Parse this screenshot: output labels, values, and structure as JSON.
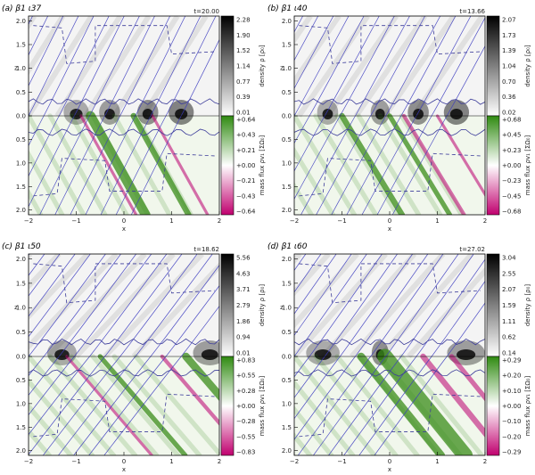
{
  "figure": {
    "panels": [
      {
        "label": "(a) β1 ι37",
        "time": "t=20.00",
        "density_ticks": [
          "2.28",
          "1.90",
          "1.52",
          "1.14",
          "0.77",
          "0.39",
          "0.01"
        ],
        "massflux_ticks": [
          "+0.64",
          "+0.43",
          "+0.21",
          "+0.00",
          "−0.21",
          "−0.43",
          "−0.64"
        ],
        "density_max": 2.28,
        "flux_max": 0.64
      },
      {
        "label": "(b) β1 ι40",
        "time": "t=13.66",
        "density_ticks": [
          "2.07",
          "1.73",
          "1.39",
          "1.04",
          "0.70",
          "0.36",
          "0.02"
        ],
        "massflux_ticks": [
          "+0.68",
          "+0.45",
          "+0.23",
          "+0.00",
          "−0.23",
          "−0.45",
          "−0.68"
        ],
        "density_max": 2.07,
        "flux_max": 0.68
      },
      {
        "label": "(c) β1 ι50",
        "time": "t=18.62",
        "density_ticks": [
          "5.56",
          "4.63",
          "3.71",
          "2.79",
          "1.86",
          "0.94",
          "0.01"
        ],
        "massflux_ticks": [
          "+0.83",
          "+0.55",
          "+0.28",
          "+0.00",
          "−0.28",
          "−0.55",
          "−0.83"
        ],
        "density_max": 5.56,
        "flux_max": 0.83
      },
      {
        "label": "(d) β1 ι60",
        "time": "t=27.02",
        "density_ticks": [
          "3.04",
          "2.55",
          "2.07",
          "1.59",
          "1.11",
          "0.62",
          "0.14"
        ],
        "massflux_ticks": [
          "+0.29",
          "+0.20",
          "+0.10",
          "+0.00",
          "−0.10",
          "−0.20",
          "−0.29"
        ],
        "density_max": 3.04,
        "flux_max": 0.29
      }
    ],
    "z_ticks_top": [
      "2.0",
      "1.5",
      "1.0",
      "0.5",
      "0.0"
    ],
    "z_ticks_bottom": [
      "0.5",
      "1.0",
      "1.5",
      "2.0"
    ],
    "x_ticks": [
      "−2",
      "−1",
      "0",
      "1",
      "2"
    ],
    "axis_z": "z",
    "axis_x": "x",
    "colorbar_density_label": "density ρ [ρ₀]",
    "colorbar_flux_label": "mass flux ρv₁ [ΣΩ₀]",
    "colors": {
      "field_lines": "#3c3cc0",
      "positive_flux": "#3a8c1a",
      "negative_flux": "#c0107a",
      "density_dark": "#111111"
    }
  }
}
